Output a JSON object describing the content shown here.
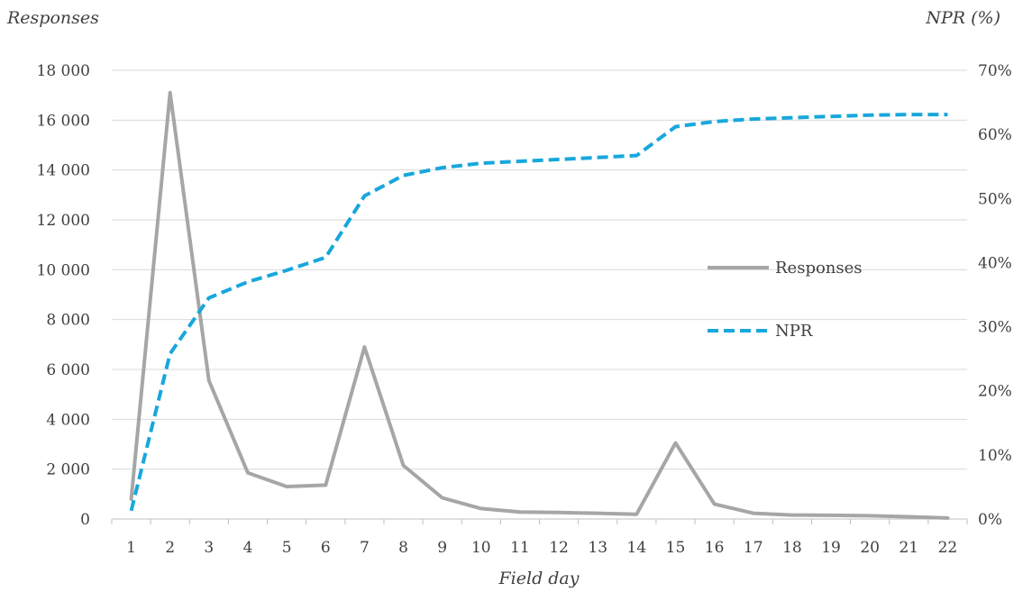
{
  "chart_data": {
    "type": "line",
    "xlabel": "Field day",
    "ylabel_left": "Responses",
    "ylabel_right": "NPR (%)",
    "x": [
      1,
      2,
      3,
      4,
      5,
      6,
      7,
      8,
      9,
      10,
      11,
      12,
      13,
      14,
      15,
      16,
      17,
      18,
      19,
      20,
      21,
      22
    ],
    "y_left": {
      "lim": [
        0,
        18000
      ],
      "ticks": [
        0,
        2000,
        4000,
        6000,
        8000,
        10000,
        12000,
        14000,
        16000,
        18000
      ],
      "tick_labels": [
        "0",
        "2 000",
        "4 000",
        "6 000",
        "8 000",
        "10 000",
        "12 000",
        "14 000",
        "16 000",
        "18 000"
      ]
    },
    "y_right": {
      "lim": [
        0,
        70
      ],
      "ticks": [
        0,
        10,
        20,
        30,
        40,
        50,
        60,
        70
      ],
      "tick_labels": [
        "0%",
        "10%",
        "20%",
        "30%",
        "40%",
        "50%",
        "60%",
        "70%"
      ]
    },
    "series": [
      {
        "name": "Responses",
        "axis": "left",
        "style": "solid",
        "color": "#a6a6a6",
        "values": [
          800,
          17100,
          5550,
          1850,
          1300,
          1360,
          6900,
          2150,
          850,
          420,
          280,
          260,
          230,
          190,
          3050,
          600,
          230,
          160,
          150,
          130,
          90,
          40
        ]
      },
      {
        "name": "NPR",
        "axis": "right",
        "style": "dashed",
        "color": "#18a7dc",
        "values": [
          1.3,
          25.8,
          34.5,
          37.0,
          38.8,
          40.8,
          50.4,
          53.6,
          54.8,
          55.5,
          55.8,
          56.1,
          56.4,
          56.7,
          61.2,
          62.0,
          62.4,
          62.6,
          62.8,
          63.0,
          63.1,
          63.1
        ]
      }
    ],
    "legend": {
      "placement": "right",
      "entries": [
        "Responses",
        "NPR"
      ]
    },
    "grid": true
  }
}
